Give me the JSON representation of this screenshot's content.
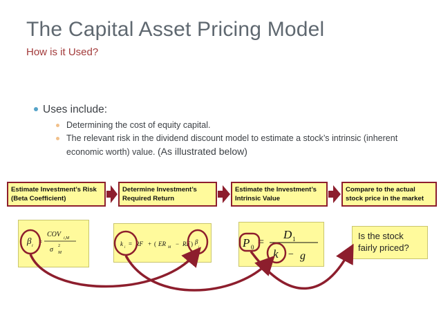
{
  "slide": {
    "title": "The Capital Asset Pricing Model",
    "subtitle": "How is it Used?",
    "bullet": "Uses include:",
    "subbullets": [
      "Determining the cost of equity capital.",
      "The relevant risk in the dividend discount model to estimate a stock’s intrinsic (inherent economic worth) value."
    ],
    "illustrated": "(As illustrated below)"
  },
  "flow": {
    "steps": [
      {
        "line1": "Estimate Investment’s Risk",
        "line2": "(Beta Coefficient)"
      },
      {
        "line1": "Determine Investment’s",
        "line2": "Required Return"
      },
      {
        "line1": "Estimate the Investment’s",
        "line2": "Intrinsic Value"
      },
      {
        "line1": "Compare to the actual",
        "line2": "stock price in the market"
      }
    ]
  },
  "formulas": {
    "beta": {
      "lhs": "β",
      "lhs_sub": "i",
      "num": "COV",
      "num_sub": "i,M",
      "den": "σ",
      "den_sup": "2",
      "den_sub": "M"
    },
    "required": {
      "k": "k",
      "k_sub": "i",
      "eq": "=",
      "rf": "RF",
      "plus": "+",
      "lp": "(",
      "er": "ER",
      "er_sub": "M",
      "minus": "−",
      "rf2": "RF",
      "rp": ")",
      "beta": "β",
      "beta_sub": "i"
    },
    "value": {
      "p": "P",
      "p_sub": "0",
      "eq": "=",
      "num": "D",
      "num_sub": "1",
      "k": "k",
      "minus": "−",
      "g": "g"
    }
  },
  "question": {
    "line1": "Is the stock",
    "line2": "fairly priced?"
  },
  "colors": {
    "accent": "#8d1e2d",
    "box_fill": "#fffa9c",
    "title": "#5f6870",
    "subtitle": "#a23a3a",
    "bullet": "#55a3c8",
    "subbullet": "#f1c08a"
  }
}
